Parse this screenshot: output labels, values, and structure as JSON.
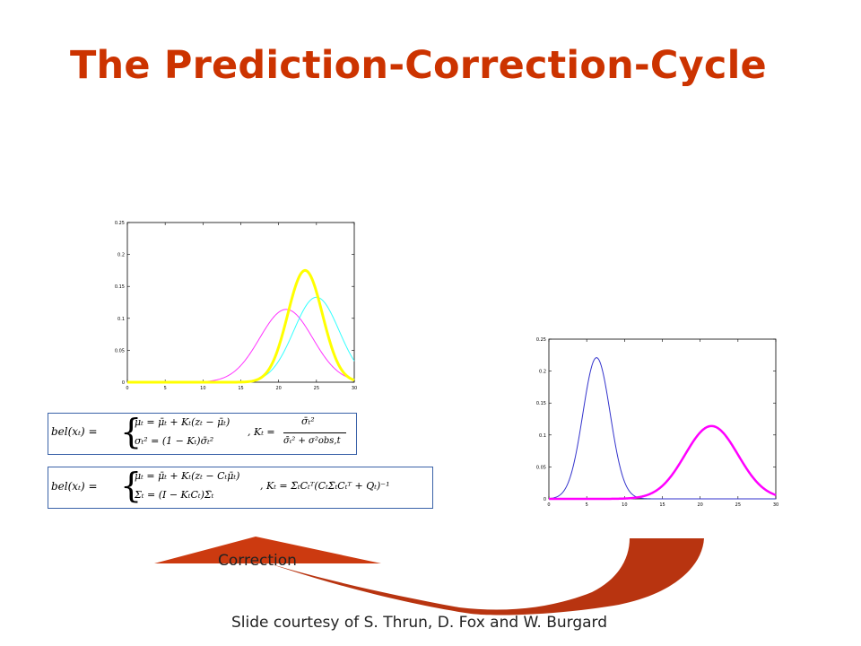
{
  "slide": {
    "title": "The Prediction-Correction-Cycle",
    "correction_label": "Correction",
    "footer": "Slide courtesy of S. Thrun, D. Fox and W. Burgard"
  },
  "colors": {
    "title": "#cc3300",
    "arrow": "#c23a10",
    "box_border": "#3a62a8"
  },
  "formulas": {
    "scalar": {
      "lhs": "bel(xₜ) =",
      "row1": "μₜ = μ̄ₜ + Kₜ(zₜ − μ̄ₜ)",
      "row2": "σₜ² = (1 − Kₜ)σ̄ₜ²",
      "gain_lhs": ", Kₜ =",
      "gain_num": "σ̄ₜ²",
      "gain_den": "σ̄ₜ² + σ²obs,t"
    },
    "matrix": {
      "lhs": "bel(xₜ) =",
      "row1": "μₜ = μ̄ₜ + Kₜ(zₜ − Cₜμ̄ₜ)",
      "row2": "Σₜ = (I − KₜCₜ)Σ̄ₜ",
      "gain": ", Kₜ = Σ̄ₜCₜᵀ(CₜΣ̄ₜCₜᵀ + Qₜ)⁻¹"
    }
  },
  "chart_data": [
    {
      "type": "line",
      "xlim": [
        0,
        30
      ],
      "ylim": [
        0,
        0.25
      ],
      "xticks": [
        "0",
        "5",
        "10",
        "15",
        "20",
        "25",
        "30"
      ],
      "yticks": [
        "0",
        "0.05",
        "0.1",
        "0.15",
        "0.2",
        "0.25"
      ],
      "series": [
        {
          "color": "#ff33ff",
          "mu": 21,
          "peak": 0.114,
          "sigma": 3.5,
          "width": 1
        },
        {
          "color": "#33ffff",
          "mu": 25,
          "peak": 0.133,
          "sigma": 3.0,
          "width": 1
        },
        {
          "color": "#ffff00",
          "mu": 23.5,
          "peak": 0.175,
          "sigma": 2.3,
          "width": 3
        }
      ]
    },
    {
      "type": "line",
      "xlim": [
        0,
        30
      ],
      "ylim": [
        0,
        0.25
      ],
      "xticks": [
        "0",
        "5",
        "10",
        "15",
        "20",
        "25",
        "30"
      ],
      "yticks": [
        "0",
        "0.05",
        "0.1",
        "0.15",
        "0.2",
        "0.25"
      ],
      "series": [
        {
          "color": "#3333cc",
          "mu": 6.3,
          "peak": 0.221,
          "sigma": 1.8,
          "width": 1
        },
        {
          "color": "#ff00ff",
          "mu": 21.5,
          "peak": 0.114,
          "sigma": 3.5,
          "width": 2.5
        }
      ]
    }
  ]
}
